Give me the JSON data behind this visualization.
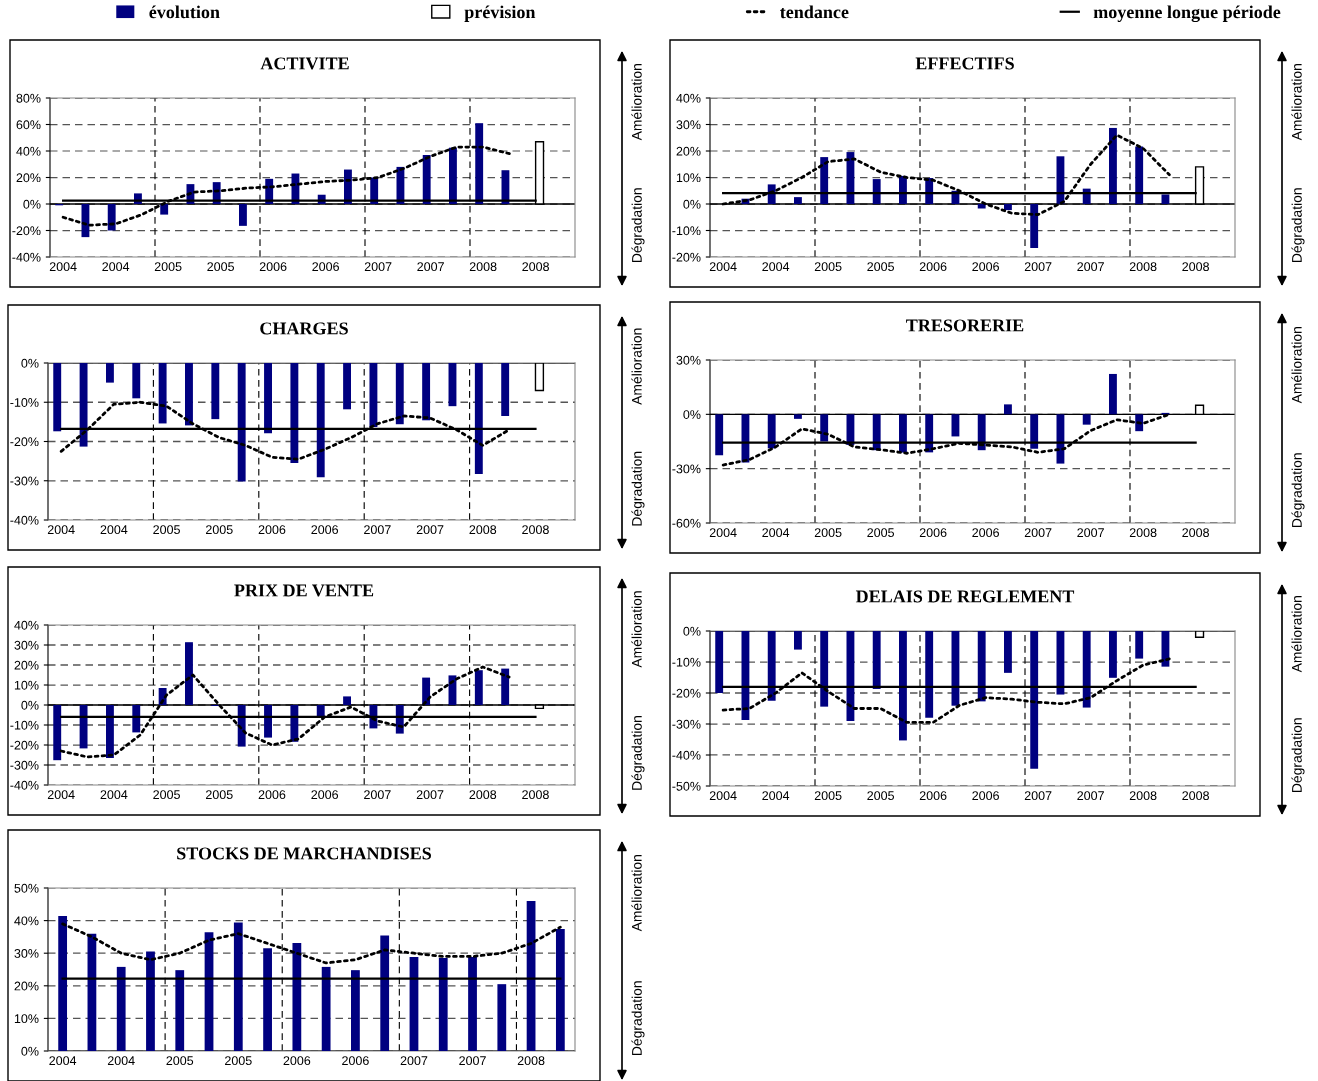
{
  "chart_data": [
    {
      "type": "bar",
      "title": "ACTIVITE",
      "legend": "top",
      "grid": true,
      "marker": "none",
      "categories": [
        "2004",
        null,
        "2004",
        null,
        "2005",
        null,
        "2005",
        null,
        "2006",
        null,
        "2006",
        null,
        "2007",
        null,
        "2007",
        null,
        "2008",
        null,
        "2008",
        null
      ],
      "ylim": [
        -40,
        80
      ],
      "yticks": [
        {
          "value": -40,
          "label": "-40%"
        },
        {
          "value": -20,
          "label": "-20%"
        },
        {
          "value": 0,
          "label": "0%"
        },
        {
          "value": 20,
          "label": "20%"
        },
        {
          "value": 40,
          "label": "40%"
        },
        {
          "value": 60,
          "label": "60%"
        },
        {
          "value": 80,
          "label": "80%"
        }
      ],
      "annotations": [
        "Amélioration",
        "Dégradation"
      ],
      "series": [
        {
          "name": "évolution",
          "color": "#000080",
          "values": [
            -1,
            -25,
            -20,
            8,
            -8,
            15,
            16.5,
            -16.5,
            19,
            23,
            7,
            26,
            20,
            28,
            37,
            42.5,
            61,
            25.5,
            null,
            null
          ]
        },
        {
          "name": "prévision",
          "color": "#ffffff",
          "values": [
            null,
            null,
            null,
            null,
            null,
            null,
            null,
            null,
            null,
            null,
            null,
            null,
            null,
            null,
            null,
            null,
            null,
            null,
            47,
            null
          ]
        },
        {
          "name": "tendance",
          "type": "line",
          "color": "#000000",
          "line_style": "dotted",
          "values": [
            -10,
            -16,
            -15,
            -8,
            2,
            9,
            10,
            12,
            13,
            15,
            17,
            18,
            20,
            27,
            36,
            43,
            43,
            38,
            null,
            null
          ]
        },
        {
          "name": "moyenne longue période",
          "type": "line",
          "color": "#000000",
          "line_style": "solid",
          "values": [
            2.5,
            2.5,
            2.5,
            2.5,
            2.5,
            2.5,
            2.5,
            2.5,
            2.5,
            2.5,
            2.5,
            2.5,
            2.5,
            2.5,
            2.5,
            2.5,
            2.5,
            2.5,
            2.5,
            null
          ]
        }
      ]
    },
    {
      "type": "bar",
      "title": "EFFECTIFS",
      "grid": true,
      "marker": "none",
      "categories": [
        "2004",
        null,
        "2004",
        null,
        "2005",
        null,
        "2005",
        null,
        "2006",
        null,
        "2006",
        null,
        "2007",
        null,
        "2007",
        null,
        "2008",
        null,
        "2008",
        null
      ],
      "ylim": [
        -20,
        40
      ],
      "yticks": [
        {
          "value": -20,
          "label": "-20%"
        },
        {
          "value": -10,
          "label": "-10%"
        },
        {
          "value": 0,
          "label": "0%"
        },
        {
          "value": 10,
          "label": "10%"
        },
        {
          "value": 20,
          "label": "20%"
        },
        {
          "value": 30,
          "label": "30%"
        },
        {
          "value": 40,
          "label": "40%"
        }
      ],
      "annotations": [
        "Amélioration",
        "Dégradation"
      ],
      "series": [
        {
          "color": "#000080",
          "values": [
            null,
            2,
            7.4,
            2.6,
            17.7,
            19.6,
            9.4,
            10.6,
            9.8,
            5,
            -1.7,
            -2.3,
            -16.6,
            18,
            5.8,
            28.7,
            21.7,
            3.6,
            null,
            null
          ]
        },
        {
          "color": "#ffffff",
          "values": [
            null,
            null,
            null,
            null,
            null,
            null,
            null,
            null,
            null,
            null,
            null,
            null,
            null,
            null,
            null,
            null,
            null,
            null,
            14,
            null
          ]
        },
        {
          "type": "line",
          "color": "#000000",
          "line_style": "dotted",
          "values": [
            0,
            1.5,
            5,
            10,
            16,
            17,
            12,
            10,
            9,
            5,
            0,
            -3.5,
            -4,
            1,
            15,
            26,
            21,
            11,
            null,
            null
          ]
        },
        {
          "type": "line",
          "color": "#000000",
          "line_style": "solid",
          "values": [
            4.1,
            4.1,
            4.1,
            4.1,
            4.1,
            4.1,
            4.1,
            4.1,
            4.1,
            4.1,
            4.1,
            4.1,
            4.1,
            4.1,
            4.1,
            4.1,
            4.1,
            4.1,
            4.1,
            null
          ]
        }
      ]
    },
    {
      "type": "bar",
      "title": "CHARGES",
      "grid": true,
      "marker": "none",
      "categories": [
        "2004",
        null,
        "2004",
        null,
        "2005",
        null,
        "2005",
        null,
        "2006",
        null,
        "2006",
        null,
        "2007",
        null,
        "2007",
        null,
        "2008",
        null,
        "2008",
        null
      ],
      "ylim": [
        -40,
        0
      ],
      "yticks": [
        {
          "value": -40,
          "label": "-40%"
        },
        {
          "value": -30,
          "label": "-30%"
        },
        {
          "value": -20,
          "label": "-20%"
        },
        {
          "value": -10,
          "label": "-10%"
        },
        {
          "value": 0,
          "label": "0%"
        }
      ],
      "annotations": [
        "Amélioration",
        "Dégradation"
      ],
      "series": [
        {
          "color": "#000080",
          "values": [
            -17.4,
            -21.3,
            -5,
            -9,
            -15.4,
            -15.9,
            -14.3,
            -30.2,
            -17.9,
            -25.5,
            -29.1,
            -11.8,
            -16.3,
            -15.6,
            -14.6,
            -11,
            -28.3,
            -13.5,
            null,
            null
          ]
        },
        {
          "color": "#ffffff",
          "values": [
            null,
            null,
            null,
            null,
            null,
            null,
            null,
            null,
            null,
            null,
            null,
            null,
            null,
            null,
            null,
            null,
            null,
            null,
            -7,
            null
          ]
        },
        {
          "type": "line",
          "color": "#000000",
          "line_style": "dotted",
          "values": [
            -22.5,
            -17,
            -10.5,
            -10,
            -11,
            -15.5,
            -19,
            -21,
            -24,
            -24.5,
            -22,
            -19,
            -15.5,
            -13.5,
            -14,
            -17,
            -21,
            -17,
            null,
            null
          ]
        },
        {
          "type": "line",
          "color": "#000000",
          "line_style": "solid",
          "values": [
            -16.8,
            -16.8,
            -16.8,
            -16.8,
            -16.8,
            -16.8,
            -16.8,
            -16.8,
            -16.8,
            -16.8,
            -16.8,
            -16.8,
            -16.8,
            -16.8,
            -16.8,
            -16.8,
            -16.8,
            -16.8,
            -16.8,
            null
          ]
        }
      ]
    },
    {
      "type": "bar",
      "title": "TRESORERIE",
      "grid": true,
      "marker": "none",
      "categories": [
        "2004",
        null,
        "2004",
        null,
        "2005",
        null,
        "2005",
        null,
        "2006",
        null,
        "2006",
        null,
        "2007",
        null,
        "2007",
        null,
        "2008",
        null,
        "2008",
        null
      ],
      "ylim": [
        -60,
        30
      ],
      "yticks": [
        {
          "value": -60,
          "label": "-60%"
        },
        {
          "value": -30,
          "label": "-30%"
        },
        {
          "value": 0,
          "label": "0%"
        },
        {
          "value": 30,
          "label": "30%"
        }
      ],
      "annotations": [
        "Amélioration",
        "Dégradation"
      ],
      "series": [
        {
          "color": "#000080",
          "values": [
            -22.6,
            -26.6,
            -18.8,
            -2.5,
            -15,
            -16.9,
            -19.8,
            -21.1,
            -21,
            -12.2,
            -19.8,
            5.5,
            -19,
            -27.2,
            -5.7,
            22.3,
            -9.3,
            0.8,
            null,
            null
          ]
        },
        {
          "color": "#ffffff",
          "values": [
            null,
            null,
            null,
            null,
            null,
            null,
            null,
            null,
            null,
            null,
            null,
            null,
            null,
            null,
            null,
            null,
            null,
            null,
            5,
            null
          ]
        },
        {
          "type": "line",
          "color": "#000000",
          "line_style": "dotted",
          "values": [
            -28,
            -25,
            -18,
            -8,
            -11,
            -18,
            -19.5,
            -21.5,
            -19,
            -16,
            -17,
            -18,
            -21,
            -19,
            -9,
            -3,
            -5,
            0,
            null,
            null
          ]
        },
        {
          "type": "line",
          "color": "#000000",
          "line_style": "solid",
          "values": [
            -15.6,
            -15.6,
            -15.6,
            -15.6,
            -15.6,
            -15.6,
            -15.6,
            -15.6,
            -15.6,
            -15.6,
            -15.6,
            -15.6,
            -15.6,
            -15.6,
            -15.6,
            -15.6,
            -15.6,
            -15.6,
            -15.6,
            null
          ]
        }
      ]
    },
    {
      "type": "bar",
      "title": "PRIX DE VENTE",
      "grid": true,
      "marker": "none",
      "categories": [
        "2004",
        null,
        "2004",
        null,
        "2005",
        null,
        "2005",
        null,
        "2006",
        null,
        "2006",
        null,
        "2007",
        null,
        "2007",
        null,
        "2008",
        null,
        "2008",
        null
      ],
      "ylim": [
        -40,
        40
      ],
      "yticks": [
        {
          "value": -40,
          "label": "-40%"
        },
        {
          "value": -30,
          "label": "-30%"
        },
        {
          "value": -20,
          "label": "-20%"
        },
        {
          "value": -10,
          "label": "-10%"
        },
        {
          "value": 0,
          "label": "0%"
        },
        {
          "value": 10,
          "label": "10%"
        },
        {
          "value": 20,
          "label": "20%"
        },
        {
          "value": 30,
          "label": "30%"
        },
        {
          "value": 40,
          "label": "40%"
        }
      ],
      "annotations": [
        "Amélioration",
        "Dégradation"
      ],
      "series": [
        {
          "color": "#000080",
          "values": [
            -27.6,
            -21.7,
            -26.5,
            -13.7,
            8.5,
            31.4,
            -0.5,
            -20.8,
            -16.3,
            -18.4,
            -5.6,
            4.3,
            -11.7,
            -14.3,
            13.7,
            14.8,
            17.4,
            18.2,
            null,
            null
          ]
        },
        {
          "color": "#ffffff",
          "values": [
            null,
            null,
            null,
            null,
            null,
            null,
            null,
            null,
            null,
            null,
            null,
            null,
            null,
            null,
            null,
            null,
            null,
            null,
            -1.7,
            null
          ]
        },
        {
          "type": "line",
          "color": "#000000",
          "line_style": "dotted",
          "values": [
            -23,
            -26,
            -25,
            -15,
            5,
            15,
            0,
            -14,
            -20,
            -17,
            -6,
            -1,
            -8,
            -11,
            4,
            13,
            19,
            14,
            null,
            null
          ]
        },
        {
          "type": "line",
          "color": "#000000",
          "line_style": "solid",
          "values": [
            -5.9,
            -5.9,
            -5.9,
            -5.9,
            -5.9,
            -5.9,
            -5.9,
            -5.9,
            -5.9,
            -5.9,
            -5.9,
            -5.9,
            -5.9,
            -5.9,
            -5.9,
            -5.9,
            -5.9,
            -5.9,
            -5.9,
            null
          ]
        }
      ]
    },
    {
      "type": "bar",
      "title": "DELAIS DE REGLEMENT",
      "grid": true,
      "marker": "none",
      "categories": [
        "2004",
        null,
        "2004",
        null,
        "2005",
        null,
        "2005",
        null,
        "2006",
        null,
        "2006",
        null,
        "2007",
        null,
        "2007",
        null,
        "2008",
        null,
        "2008",
        null
      ],
      "ylim": [
        -50,
        0
      ],
      "yticks": [
        {
          "value": -50,
          "label": "-50%"
        },
        {
          "value": -40,
          "label": "-40%"
        },
        {
          "value": -30,
          "label": "-30%"
        },
        {
          "value": -20,
          "label": "-20%"
        },
        {
          "value": -10,
          "label": "-10%"
        },
        {
          "value": 0,
          "label": "0%"
        }
      ],
      "annotations": [
        "Amélioration",
        "Dégradation"
      ],
      "series": [
        {
          "color": "#000080",
          "values": [
            -20,
            -28.7,
            -22.5,
            -6,
            -24.4,
            -29,
            -18.7,
            -35.3,
            -28,
            -24.1,
            -22.7,
            -13.5,
            -44.4,
            -20.5,
            -24.7,
            -15.1,
            -8.9,
            -11.5,
            null,
            null
          ]
        },
        {
          "color": "#ffffff",
          "values": [
            null,
            null,
            null,
            null,
            null,
            null,
            null,
            null,
            null,
            null,
            null,
            null,
            null,
            null,
            null,
            null,
            null,
            null,
            -2,
            null
          ]
        },
        {
          "type": "line",
          "color": "#000000",
          "line_style": "dotted",
          "values": [
            -25.5,
            -25,
            -20,
            -13.5,
            -19.5,
            -25,
            -25,
            -29.5,
            -29.5,
            -24,
            -21.5,
            -22,
            -23,
            -23.5,
            -21.5,
            -16,
            -11,
            -9,
            null,
            null
          ]
        },
        {
          "type": "line",
          "color": "#000000",
          "line_style": "solid",
          "values": [
            -18,
            -18,
            -18,
            -18,
            -18,
            -18,
            -18,
            -18,
            -18,
            -18,
            -18,
            -18,
            -18,
            -18,
            -18,
            -18,
            -18,
            -18,
            -18,
            null
          ]
        }
      ]
    },
    {
      "type": "bar",
      "title": "STOCKS DE MARCHANDISES",
      "grid": true,
      "marker": "none",
      "categories": [
        "2004",
        null,
        "2004",
        null,
        "2005",
        null,
        "2005",
        null,
        "2006",
        null,
        "2006",
        null,
        "2007",
        null,
        "2007",
        null,
        "2008",
        null
      ],
      "ylim": [
        0,
        50
      ],
      "yticks": [
        {
          "value": 0,
          "label": "0%"
        },
        {
          "value": 10,
          "label": "10%"
        },
        {
          "value": 20,
          "label": "20%"
        },
        {
          "value": 30,
          "label": "30%"
        },
        {
          "value": 40,
          "label": "40%"
        },
        {
          "value": 50,
          "label": "50%"
        }
      ],
      "annotations": [
        "Amélioration",
        "Dégradation"
      ],
      "series": [
        {
          "color": "#000080",
          "values": [
            41.4,
            36,
            25.8,
            30.5,
            24.8,
            36.4,
            39.4,
            31.5,
            33.1,
            25.8,
            24.8,
            35.4,
            28.8,
            28.5,
            28.8,
            20.5,
            46,
            37.4
          ]
        },
        {
          "type": "line",
          "color": "#000000",
          "line_style": "dotted",
          "values": [
            39,
            35,
            30,
            28,
            30,
            34,
            36,
            33,
            30,
            27,
            28,
            31,
            30,
            29,
            29,
            30,
            33,
            38
          ]
        },
        {
          "type": "line",
          "color": "#000000",
          "line_style": "solid",
          "values": [
            22.2,
            22.2,
            22.2,
            22.2,
            22.2,
            22.2,
            22.2,
            22.2,
            22.2,
            22.2,
            22.2,
            22.2,
            22.2,
            22.2,
            22.2,
            22.2,
            22.2,
            22.2
          ]
        }
      ]
    }
  ]
}
